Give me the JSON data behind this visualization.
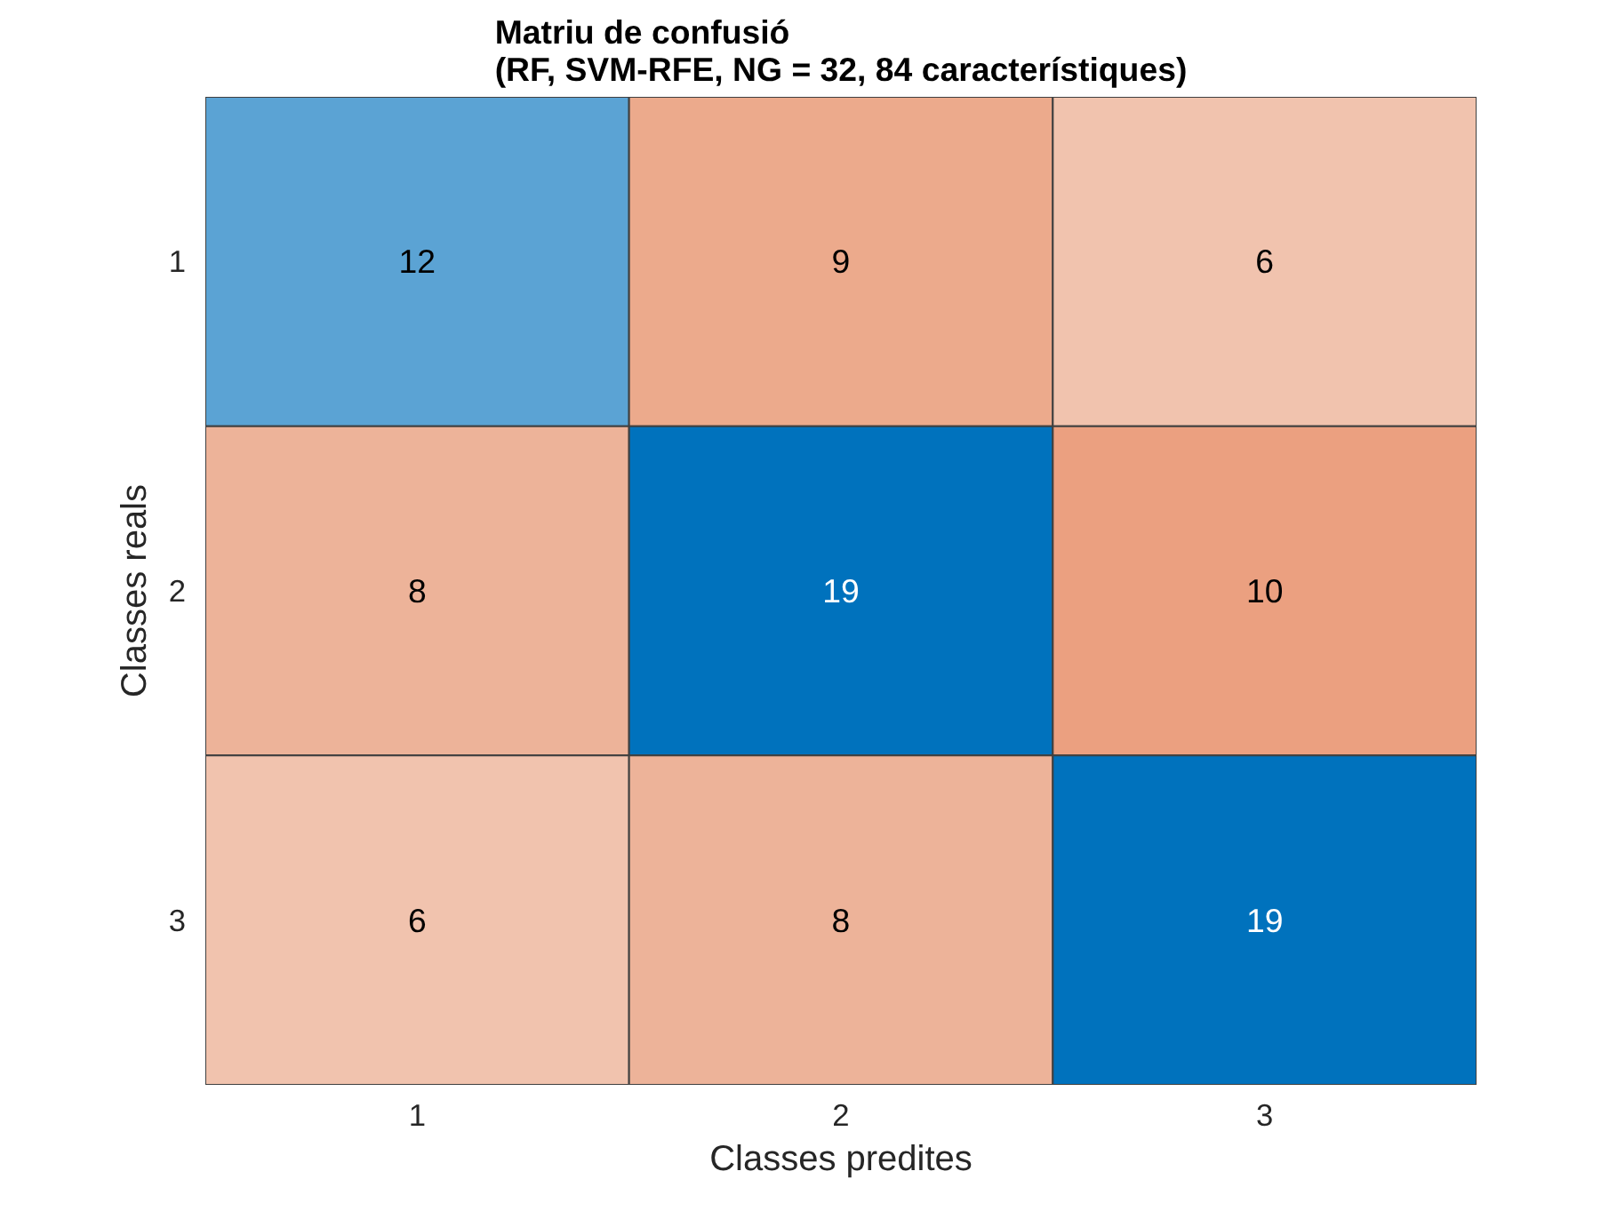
{
  "chart_data": {
    "type": "heatmap",
    "title": "Matriu de confusió\n(RF, SVM-RFE, NG = 32, 84 característiques)",
    "xlabel": "Classes predites",
    "ylabel": "Classes reals",
    "categories": [
      "1",
      "2",
      "3"
    ],
    "y_categories": [
      "1",
      "2",
      "3"
    ],
    "cells": [
      [
        12,
        9,
        6
      ],
      [
        8,
        19,
        10
      ],
      [
        6,
        8,
        19
      ]
    ],
    "colors": [
      [
        "#5ba3d4",
        "#ecaa8c",
        "#f1c3ae"
      ],
      [
        "#edb399",
        "#0072bd",
        "#eba080"
      ],
      [
        "#f1c3ae",
        "#edb399",
        "#0072bd"
      ]
    ],
    "data_labels": true
  }
}
